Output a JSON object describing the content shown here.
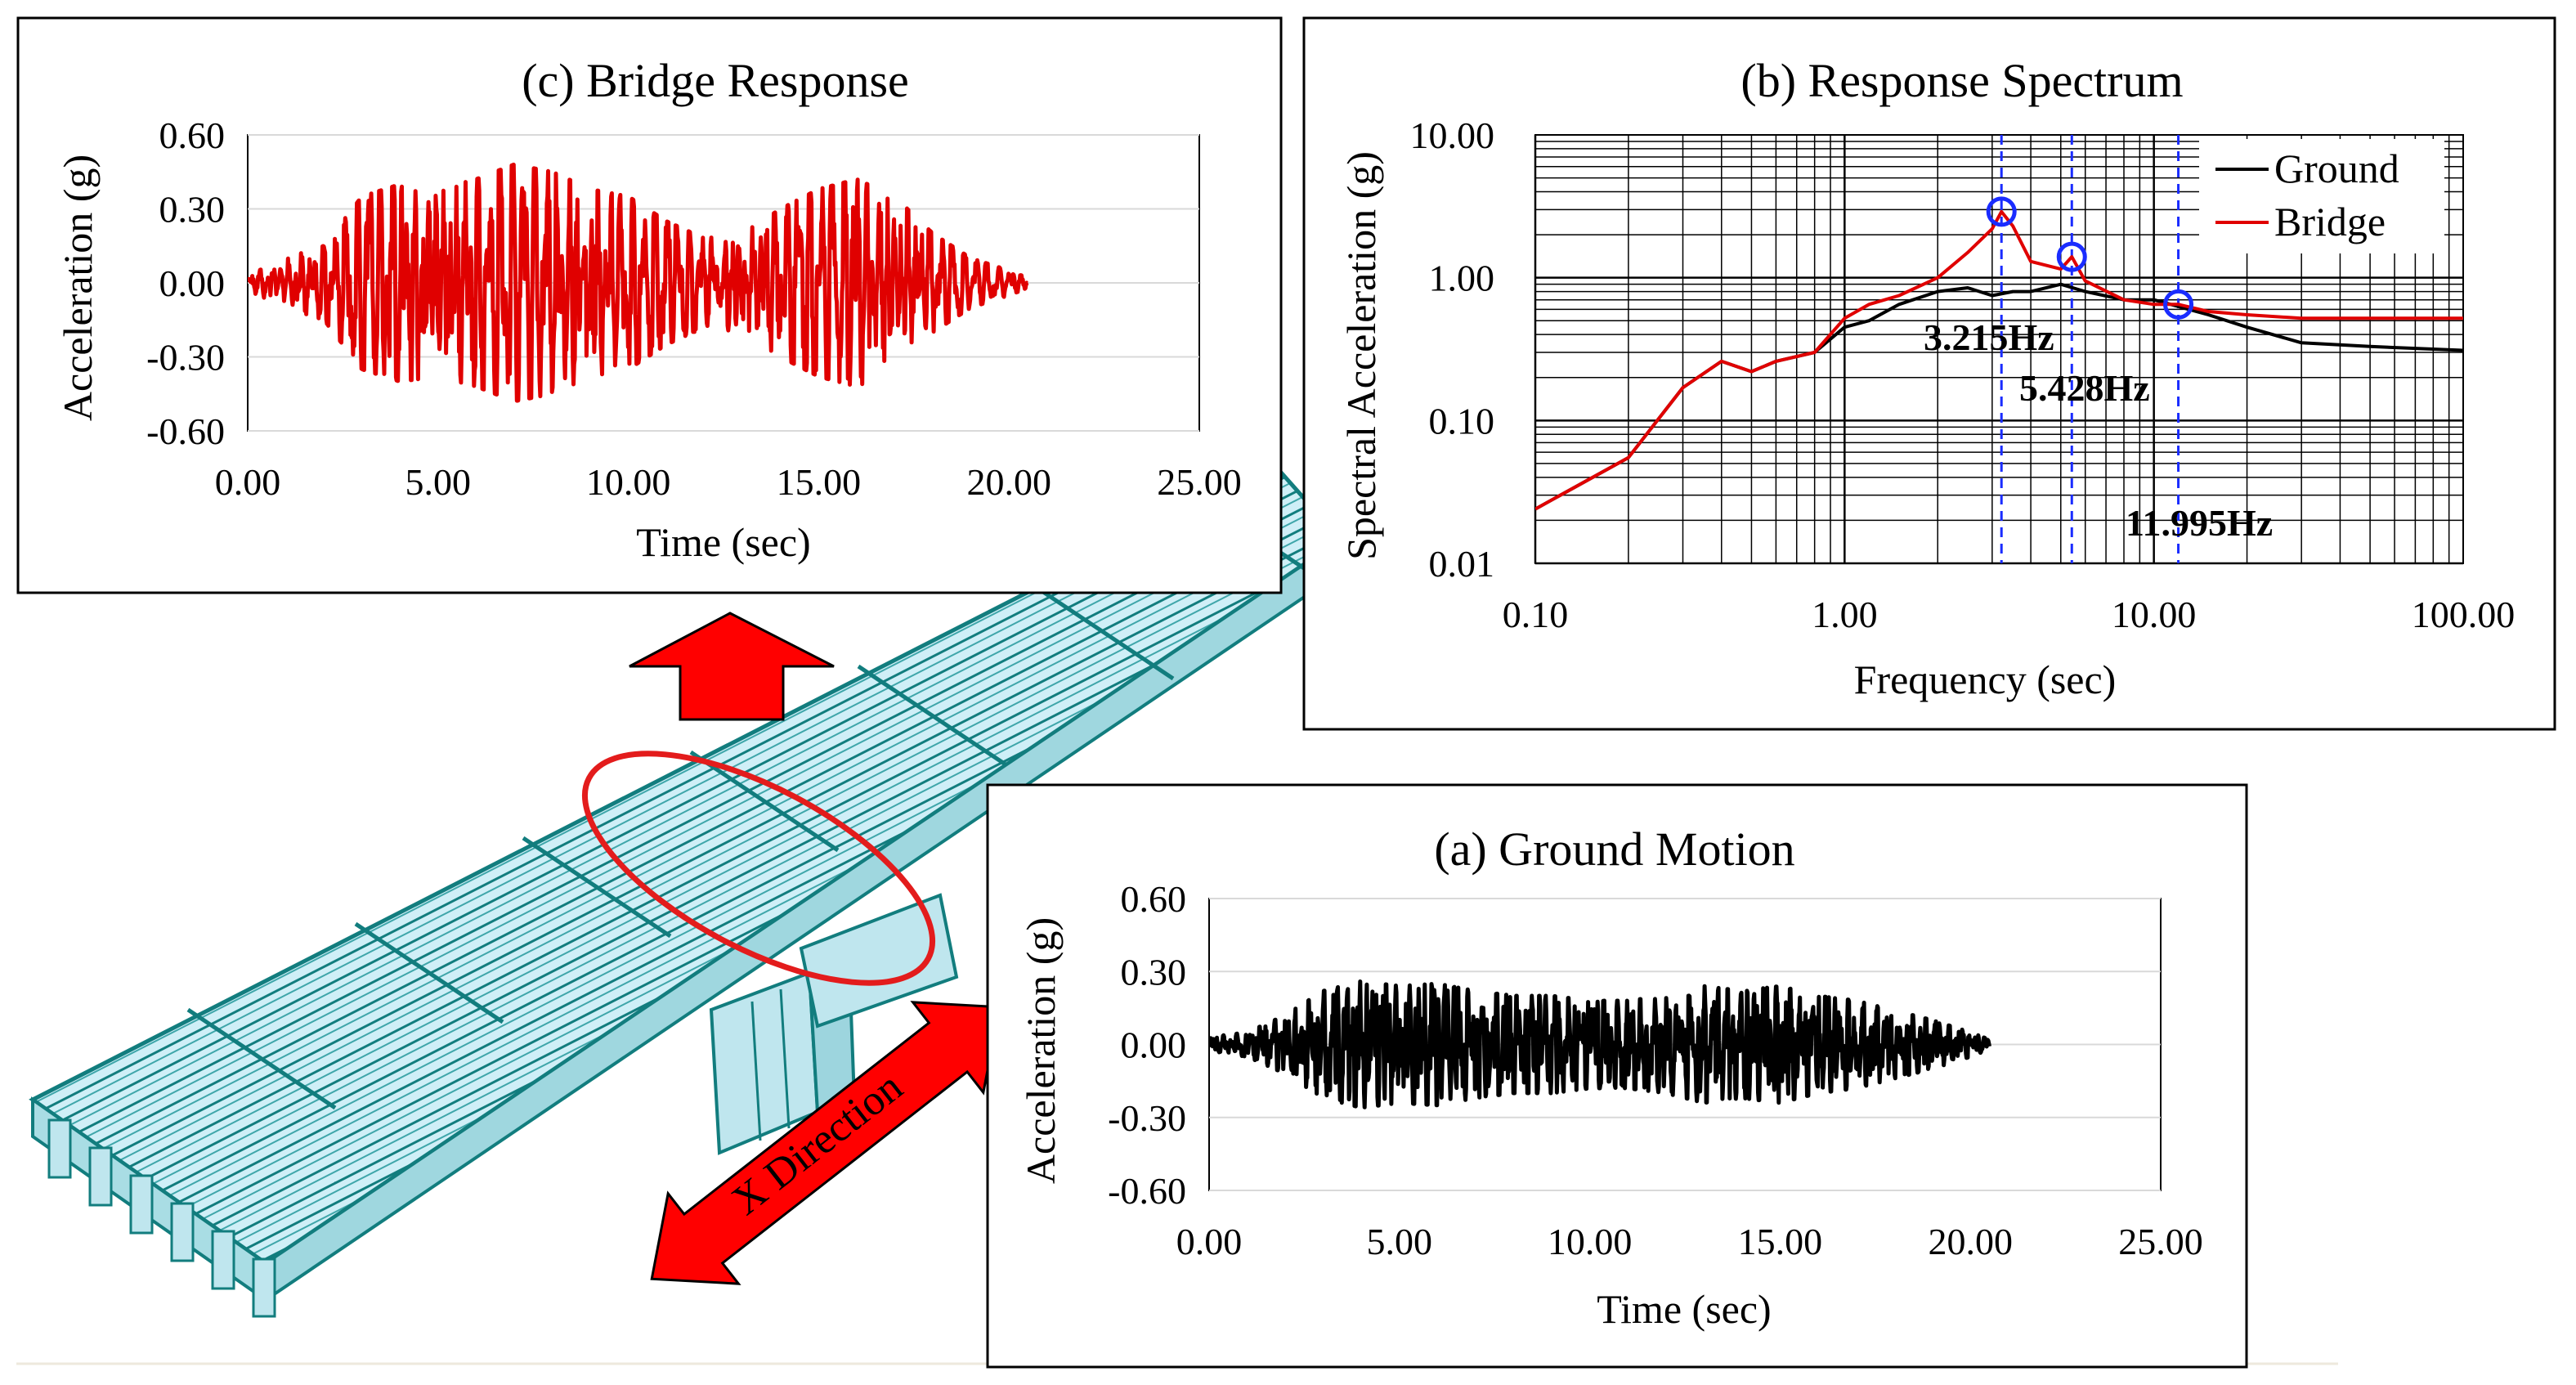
{
  "figure": {
    "direction_label": "X Direction"
  },
  "colors": {
    "bridge_fill": "#cfeff7",
    "bridge_line": "#127d7e",
    "arrow_red": "#ff0000",
    "highlight_red": "#e31c1c",
    "marker_blue": "#1a2cff",
    "ground_line": "#000000",
    "bridge_line_series": "#e00000"
  },
  "chart_data": [
    {
      "id": "ground_motion",
      "type": "line",
      "title": "(a) Ground Motion",
      "xlabel": "Time (sec)",
      "ylabel": "Acceleration (g)",
      "xlim": [
        0,
        25
      ],
      "ylim": [
        -0.6,
        0.6
      ],
      "x_ticks": [
        "0.00",
        "5.00",
        "10.00",
        "15.00",
        "20.00",
        "25.00"
      ],
      "y_ticks": [
        "0.60",
        "0.30",
        "0.00",
        "-0.30",
        "-0.60"
      ],
      "grid": "horizontal",
      "series": [
        {
          "name": "Ground",
          "color": "#000000",
          "duration": 20.5,
          "envelope_t": [
            0,
            1,
            2,
            3,
            4,
            5,
            6,
            7,
            8,
            9,
            10,
            11,
            12,
            13,
            14,
            15,
            16,
            17,
            18,
            19,
            20,
            20.5
          ],
          "envelope_a": [
            0.03,
            0.05,
            0.12,
            0.22,
            0.26,
            0.24,
            0.25,
            0.22,
            0.2,
            0.2,
            0.18,
            0.18,
            0.2,
            0.24,
            0.22,
            0.24,
            0.2,
            0.18,
            0.14,
            0.1,
            0.05,
            0.02
          ],
          "peaks": {
            "max": 0.26,
            "min": -0.29
          }
        }
      ]
    },
    {
      "id": "response_spectrum",
      "type": "line",
      "scale": "log-log",
      "title": "(b) Response  Spectrum",
      "xlabel": "Frequency (sec)",
      "ylabel": "Spectral Acceleration (g)",
      "xlim": [
        0.1,
        100
      ],
      "ylim": [
        0.01,
        10
      ],
      "x_ticks": [
        "0.10",
        "1.00",
        "10.00",
        "100.00"
      ],
      "y_ticks": [
        "10.00",
        "1.00",
        "0.10",
        "0.01"
      ],
      "grid": "both",
      "legend": "top-right",
      "series": [
        {
          "name": "Ground",
          "color": "#000000",
          "x": [
            0.1,
            0.2,
            0.3,
            0.4,
            0.5,
            0.6,
            0.8,
            1.0,
            1.2,
            1.5,
            2.0,
            2.5,
            3.0,
            3.5,
            4.0,
            5.0,
            6.0,
            8.0,
            10.0,
            15.0,
            20.0,
            30.0,
            50.0,
            100.0
          ],
          "y": [
            0.024,
            0.055,
            0.17,
            0.26,
            0.22,
            0.26,
            0.3,
            0.45,
            0.5,
            0.65,
            0.8,
            0.85,
            0.75,
            0.8,
            0.8,
            0.9,
            0.8,
            0.7,
            0.7,
            0.55,
            0.45,
            0.35,
            0.33,
            0.31
          ]
        },
        {
          "name": "Bridge",
          "color": "#e00000",
          "x": [
            0.1,
            0.2,
            0.3,
            0.4,
            0.5,
            0.6,
            0.8,
            1.0,
            1.2,
            1.5,
            2.0,
            2.5,
            3.0,
            3.215,
            3.5,
            4.0,
            5.0,
            5.428,
            6.0,
            8.0,
            10.0,
            11.995,
            15.0,
            20.0,
            30.0,
            50.0,
            100.0
          ],
          "y": [
            0.024,
            0.055,
            0.17,
            0.26,
            0.22,
            0.26,
            0.3,
            0.52,
            0.65,
            0.75,
            1.0,
            1.5,
            2.2,
            2.9,
            2.3,
            1.3,
            1.15,
            1.4,
            0.95,
            0.7,
            0.65,
            0.65,
            0.58,
            0.55,
            0.52,
            0.52,
            0.52
          ]
        }
      ],
      "peak_markers": [
        {
          "freq": 3.215,
          "value": 2.9,
          "label": "3.215Hz"
        },
        {
          "freq": 5.428,
          "value": 1.4,
          "label": "5.428Hz"
        },
        {
          "freq": 11.995,
          "value": 0.65,
          "label": "11.995Hz"
        }
      ]
    },
    {
      "id": "bridge_response",
      "type": "line",
      "title": "(c) Bridge Response",
      "xlabel": "Time (sec)",
      "ylabel": "Acceleration (g)",
      "xlim": [
        0,
        25
      ],
      "ylim": [
        -0.6,
        0.6
      ],
      "x_ticks": [
        "0.00",
        "5.00",
        "10.00",
        "15.00",
        "20.00",
        "25.00"
      ],
      "y_ticks": [
        "0.60",
        "0.30",
        "0.00",
        "-0.30",
        "-0.60"
      ],
      "grid": "horizontal",
      "series": [
        {
          "name": "Bridge",
          "color": "#e00000",
          "duration": 20.5,
          "envelope_t": [
            0,
            1,
            2,
            3,
            4,
            5,
            6,
            7,
            8,
            9,
            10,
            11,
            12,
            13,
            14,
            15,
            16,
            17,
            18,
            19,
            20,
            20.5
          ],
          "envelope_a": [
            0.03,
            0.1,
            0.15,
            0.35,
            0.4,
            0.38,
            0.42,
            0.48,
            0.45,
            0.38,
            0.35,
            0.25,
            0.18,
            0.2,
            0.3,
            0.38,
            0.42,
            0.35,
            0.2,
            0.1,
            0.05,
            0.02
          ],
          "peaks": {
            "max": 0.5,
            "min": -0.5
          }
        }
      ]
    }
  ]
}
